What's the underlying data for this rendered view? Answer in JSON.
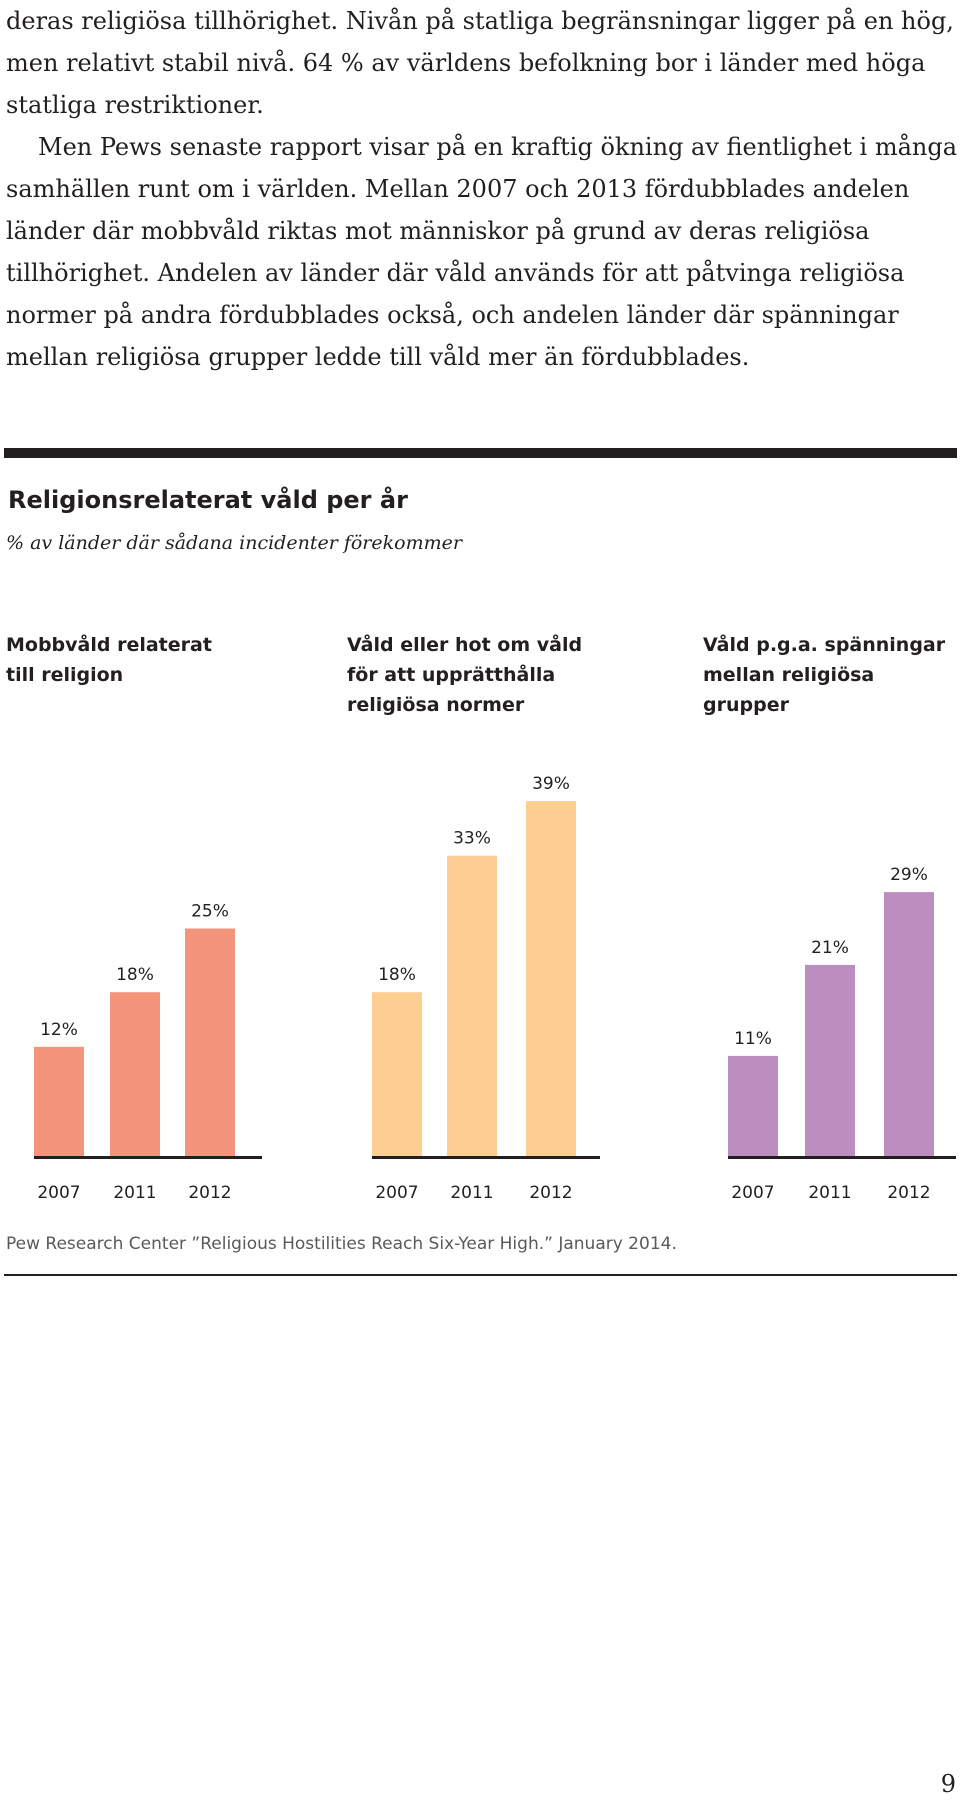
{
  "body_text": {
    "paragraph_1": "deras religiösa tillhörighet.  Nivån på statliga begränsningar ligger på en hög, men relativt stabil nivå. 64 % av världens befolkning bor i länder med höga statliga restriktioner.",
    "paragraph_2": "Men Pews senaste rapport visar på en kraftig ökning av fientlighet i många samhällen runt om i världen. Mellan 2007 och 2013 fördubblades andelen länder där mobbvåld riktas mot människor på grund av deras religiösa tillhörighet. Andelen av länder där våld används för att påtvinga religiösa normer på andra fördubblades också, och andelen länder där spänningar mellan religiösa grupper ledde till våld mer än fördubblades."
  },
  "chart_data": {
    "type": "bar",
    "title": "Religionsrelaterat våld per år",
    "subtitle": "% av länder där sådana incidenter förekommer",
    "ylim": [
      0,
      40
    ],
    "panels": [
      {
        "title": "Mobbvåld relaterat\ntill religion",
        "color": "#f2957b",
        "categories": [
          "2007",
          "2011",
          "2012"
        ],
        "values": [
          12,
          18,
          25
        ],
        "value_labels": [
          "12%",
          "18%",
          "25%"
        ]
      },
      {
        "title": "Våld eller hot om våld\nför att upprätthålla\nreligiösa normer",
        "color": "#fdce91",
        "categories": [
          "2007",
          "2011",
          "2012"
        ],
        "values": [
          18,
          33,
          39
        ],
        "value_labels": [
          "18%",
          "33%",
          "39%"
        ]
      },
      {
        "title": "Våld p.g.a. spänningar\nmellan religiösa\ngrupper",
        "color": "#bc8dbf",
        "categories": [
          "2007",
          "2011",
          "2012"
        ],
        "values": [
          11,
          21,
          29
        ],
        "value_labels": [
          "11%",
          "21%",
          "29%"
        ]
      }
    ]
  },
  "source": "Pew Research Center ”Religious Hostilities Reach Six-Year High.” January 2014.",
  "page_number": "9"
}
